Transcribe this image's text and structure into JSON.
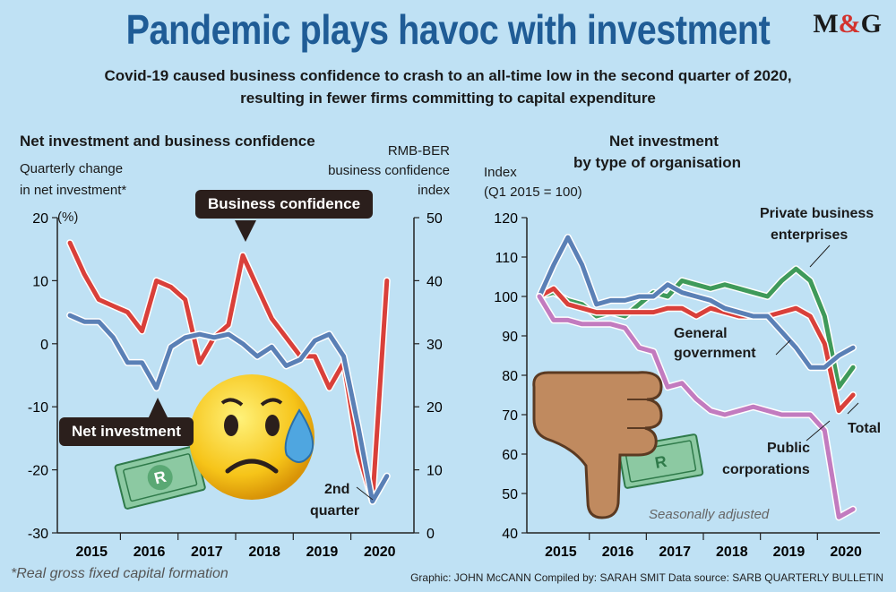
{
  "header": {
    "title": "Pandemic plays havoc with investment",
    "subtitle": "Covid-19 caused business confidence to crash to an all-time low in the second quarter of 2020, resulting in fewer firms committing to capital expenditure",
    "logo": "M&G"
  },
  "footer": {
    "note": "*Real gross fixed capital formation",
    "credits": "Graphic: JOHN McCANN  Compiled by: SARAH SMIT  Data source: SARB QUARTERLY BULLETIN"
  },
  "colors": {
    "red": "#d9403a",
    "blue": "#5a80b6",
    "green": "#3f9a5a",
    "pink": "#c27bbf",
    "title_blue": "#1f5c96"
  },
  "chart_data": [
    {
      "type": "line",
      "title": "Net investment and business confidence",
      "left_axis_label": "Quarterly change in net investment*",
      "left_axis_unit": "(%)",
      "right_axis_label": "RMB-BER business confidence index",
      "left_ylim": [
        -30,
        20
      ],
      "right_ylim": [
        0,
        50
      ],
      "left_ticks": [
        "20",
        "10",
        "0",
        "-10",
        "-20",
        "-30"
      ],
      "right_ticks": [
        "50",
        "40",
        "30",
        "20",
        "10",
        "0"
      ],
      "x_labels": [
        "2015",
        "2016",
        "2017",
        "2018",
        "2019",
        "2020"
      ],
      "x": [
        2015.0,
        2015.25,
        2015.5,
        2015.75,
        2016.0,
        2016.25,
        2016.5,
        2016.75,
        2017.0,
        2017.25,
        2017.5,
        2017.75,
        2018.0,
        2018.25,
        2018.5,
        2018.75,
        2019.0,
        2019.25,
        2019.5,
        2019.75,
        2020.0,
        2020.25,
        2020.5
      ],
      "series": [
        {
          "name": "Business confidence",
          "axis": "right",
          "values": [
            46,
            41,
            37,
            36,
            35,
            32,
            40,
            39,
            37,
            27,
            31,
            33,
            44,
            39,
            34,
            31,
            28,
            28,
            23,
            27,
            13,
            5,
            40
          ]
        },
        {
          "name": "Net investment",
          "axis": "left",
          "values": [
            4.5,
            3.5,
            3.5,
            1,
            -3,
            -3,
            -7,
            -0.5,
            1,
            1.5,
            1,
            1.5,
            0,
            -2,
            -0.5,
            -3.5,
            -2.5,
            0.5,
            1.5,
            -2,
            -13,
            -25,
            -21
          ]
        }
      ],
      "annotations": [
        "2nd quarter"
      ]
    },
    {
      "type": "line",
      "title": "Net investment by type of organisation",
      "ylabel": "Index (Q1 2015 = 100)",
      "ylim": [
        40,
        120
      ],
      "ticks": [
        "120",
        "110",
        "100",
        "90",
        "80",
        "70",
        "60",
        "50",
        "40"
      ],
      "x_labels": [
        "2015",
        "2016",
        "2017",
        "2018",
        "2019",
        "2020"
      ],
      "x": [
        2015.0,
        2015.25,
        2015.5,
        2015.75,
        2016.0,
        2016.25,
        2016.5,
        2016.75,
        2017.0,
        2017.25,
        2017.5,
        2017.75,
        2018.0,
        2018.25,
        2018.5,
        2018.75,
        2019.0,
        2019.25,
        2019.5,
        2019.75,
        2020.0,
        2020.25,
        2020.5
      ],
      "series": [
        {
          "name": "Private business enterprises",
          "values": [
            100,
            101,
            99,
            98,
            95,
            96,
            95,
            98,
            101,
            100,
            104,
            103,
            102,
            103,
            102,
            101,
            100,
            104,
            107,
            104,
            95,
            77,
            82
          ]
        },
        {
          "name": "Total",
          "values": [
            100,
            102,
            98,
            97,
            96,
            96,
            96,
            96,
            96,
            97,
            97,
            95,
            97,
            96,
            95,
            95,
            95,
            96,
            97,
            95,
            88,
            71,
            75
          ]
        },
        {
          "name": "General government",
          "values": [
            100,
            108,
            115,
            108,
            98,
            99,
            99,
            100,
            100,
            103,
            101,
            100,
            99,
            97,
            96,
            95,
            95,
            91,
            87,
            82,
            82,
            85,
            87
          ]
        },
        {
          "name": "Public corporations",
          "values": [
            100,
            94,
            94,
            93,
            93,
            93,
            92,
            87,
            86,
            77,
            78,
            74,
            71,
            70,
            71,
            72,
            71,
            70,
            70,
            70,
            66,
            44,
            46
          ]
        }
      ],
      "annotations": [
        "Seasonally adjusted"
      ]
    }
  ],
  "labels": {
    "left_title": "Net investment and business confidence",
    "left_yl1": "Quarterly change",
    "left_yl2": "in net investment*",
    "left_unit": "(%)",
    "right_yl1": "RMB-BER",
    "right_yl2": "business confidence",
    "right_yl3": "index",
    "callout_bc": "Business confidence",
    "callout_ni": "Net investment",
    "q2_1": "2nd",
    "q2_2": "quarter",
    "rt_title1": "Net investment",
    "rt_title2": "by type of organisation",
    "rt_yl1": "Index",
    "rt_yl2": "(Q1 2015 = 100)",
    "pbe1": "Private business",
    "pbe2": "enterprises",
    "gg1": "General",
    "gg2": "government",
    "total": "Total",
    "pc1": "Public",
    "pc2": "corporations",
    "seasonal": "Seasonally adjusted"
  }
}
